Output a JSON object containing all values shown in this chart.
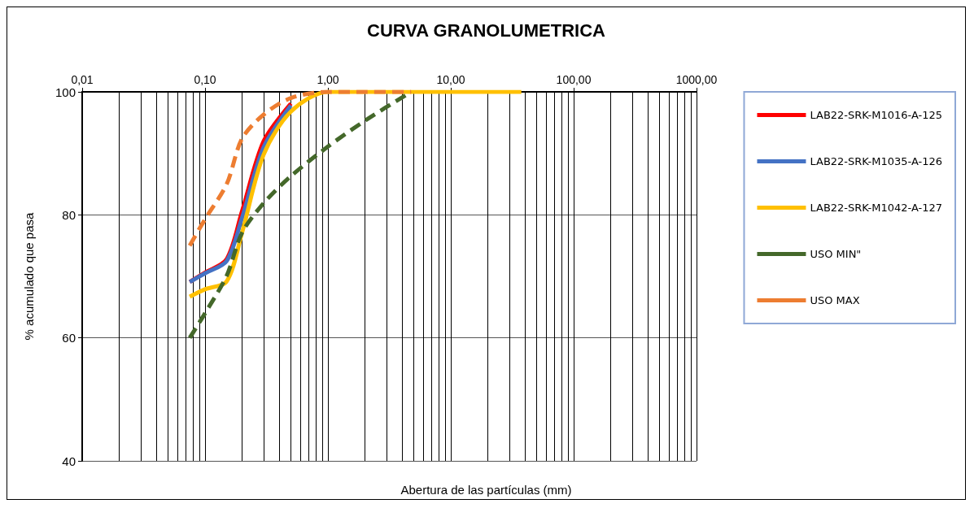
{
  "chart_data": {
    "type": "line",
    "title": "CURVA GRANOLUMETRICA",
    "xlabel": "Abertura de las partículas (mm)",
    "ylabel": "% acumulado que pasa",
    "log": "x",
    "xlim": [
      0.01,
      1000
    ],
    "xticks": [
      {
        "value": 0.01,
        "label": "0,01"
      },
      {
        "value": 0.1,
        "label": "0,10"
      },
      {
        "value": 1,
        "label": "1,00"
      },
      {
        "value": 10,
        "label": "10,00"
      },
      {
        "value": 100,
        "label": "100,00"
      },
      {
        "value": 1000,
        "label": "1000,00"
      }
    ],
    "ylim": [
      40,
      100
    ],
    "yticks": [
      40,
      60,
      80,
      100
    ],
    "grid": true,
    "legend": "top right",
    "marker": "none",
    "series": [
      {
        "name": "LAB22-SRK-M1016-A-125",
        "color": "#ff0000",
        "line_style": "solid",
        "x": [
          0.075,
          0.1,
          0.15,
          0.2,
          0.3,
          0.5
        ],
        "values": [
          69.1,
          70.6,
          72.8,
          80.6,
          92,
          98.1
        ]
      },
      {
        "name": "LAB22-SRK-M1035-A-126",
        "color": "#4472c4",
        "line_style": "solid",
        "x": [
          0.075,
          0.1,
          0.15,
          0.2,
          0.3,
          0.5
        ],
        "values": [
          69.1,
          70.5,
          72.5,
          79.5,
          91,
          97.8
        ]
      },
      {
        "name": "LAB22-SRK-M1042-A-127",
        "color": "#ffc000",
        "line_style": "solid",
        "x": [
          0.075,
          0.1,
          0.15,
          0.2,
          0.3,
          0.5,
          1,
          2,
          4.75,
          37.5
        ],
        "values": [
          66.7,
          67.9,
          69.2,
          77.1,
          89.8,
          96.8,
          100,
          100,
          100,
          100
        ]
      },
      {
        "name": "USO MIN\"",
        "color": "#44682a",
        "line_style": "dashed",
        "x": [
          0.075,
          0.1,
          0.15,
          0.2,
          0.3,
          0.5,
          1,
          2,
          4.75
        ],
        "values": [
          60,
          64,
          70.1,
          77.1,
          81.9,
          86.3,
          91.1,
          95.3,
          100
        ]
      },
      {
        "name": "USO MAX",
        "color": "#ed7d31",
        "line_style": "dashed",
        "x": [
          0.075,
          0.1,
          0.15,
          0.2,
          0.3,
          0.5,
          1,
          2,
          4.75
        ],
        "values": [
          75,
          79.3,
          85,
          92.4,
          96.3,
          99,
          100,
          100,
          100
        ]
      }
    ]
  }
}
